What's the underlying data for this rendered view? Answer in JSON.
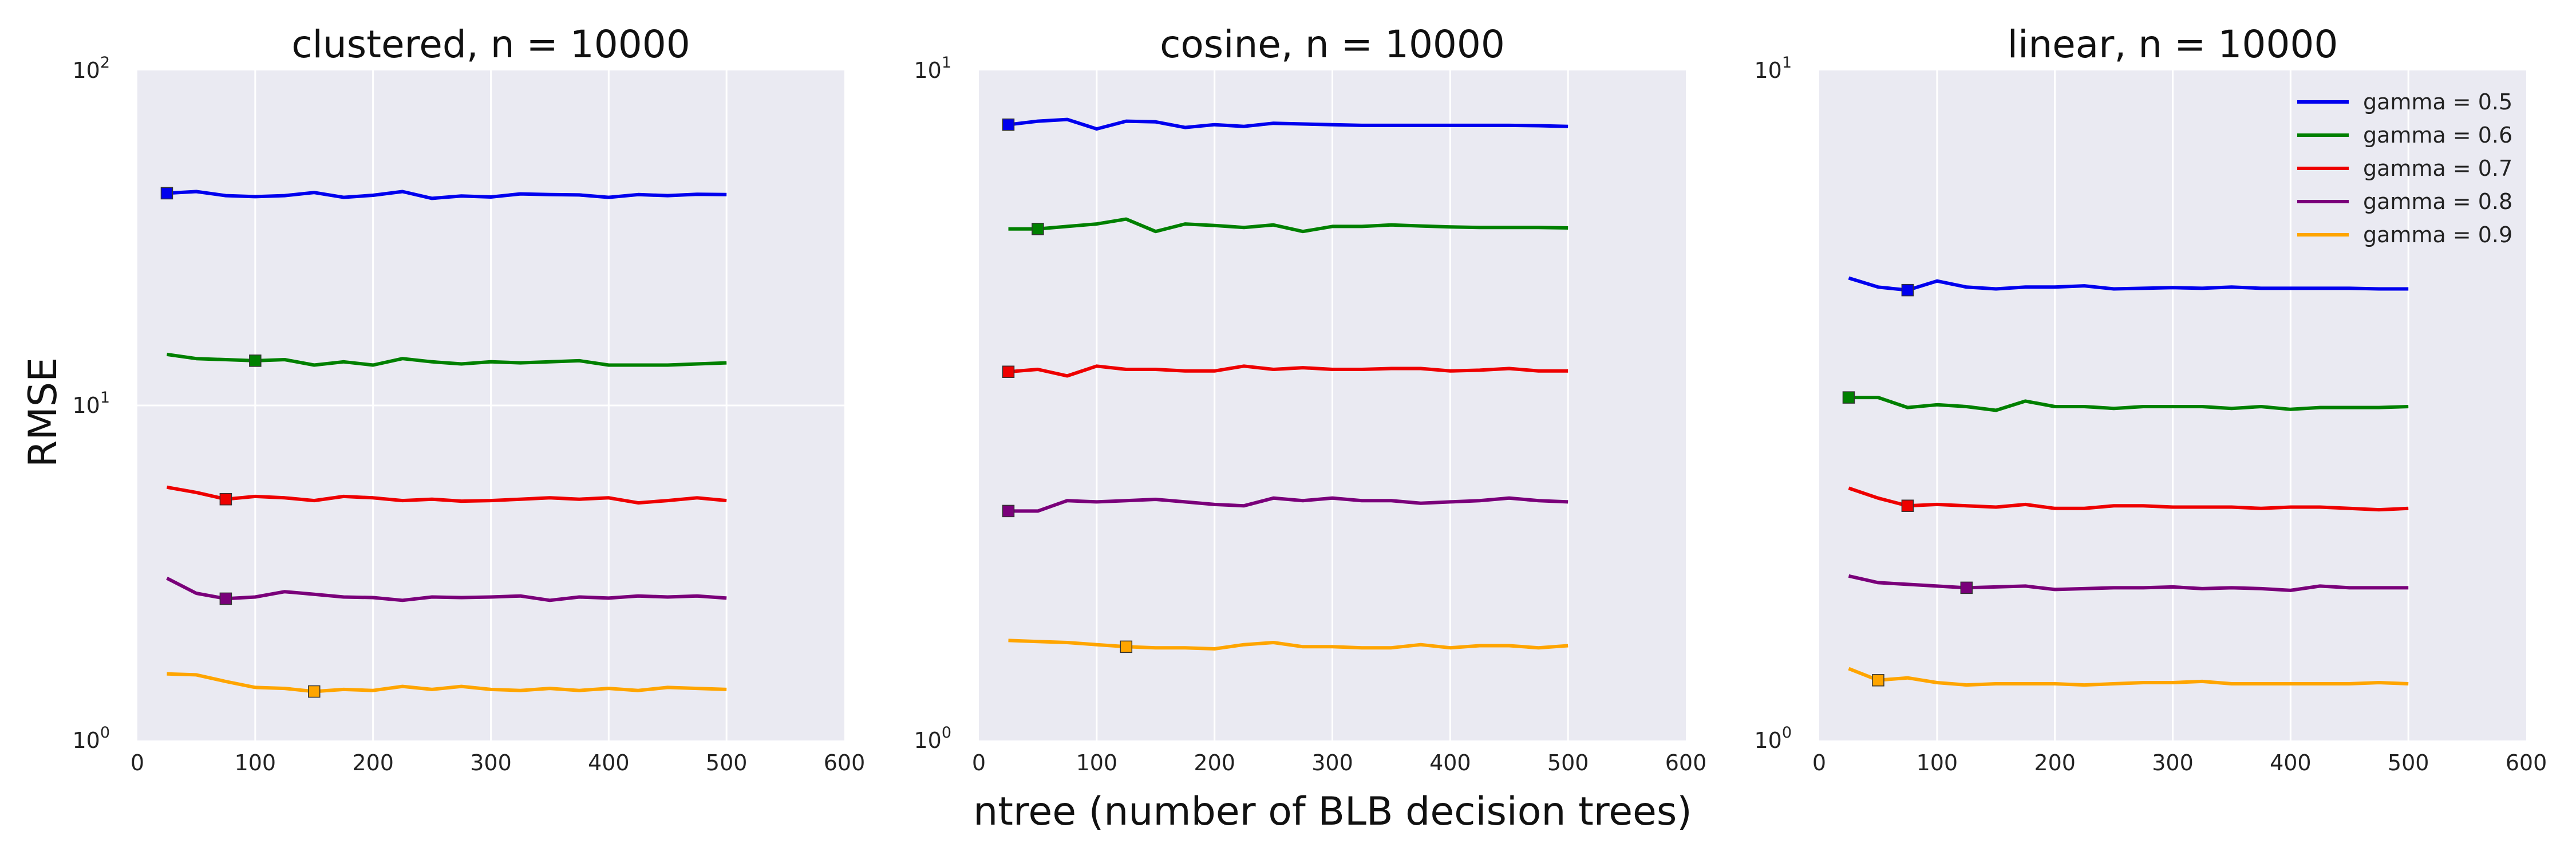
{
  "figure": {
    "ylabel": "RMSE",
    "xlabel": "ntree (number of BLB decision trees)"
  },
  "chart_data": [
    {
      "type": "line",
      "title": "clustered, n = 10000",
      "xlim": [
        0,
        600
      ],
      "ylim": [
        1,
        100
      ],
      "yscale": "log",
      "xticks": [
        "0",
        "100",
        "200",
        "300",
        "400",
        "500",
        "600"
      ],
      "yticks": [
        {
          "base": "10",
          "exp": "0"
        },
        {
          "base": "10",
          "exp": "1"
        },
        {
          "base": "10",
          "exp": "2"
        }
      ],
      "grid": true,
      "x": [
        25,
        50,
        75,
        100,
        125,
        150,
        175,
        200,
        225,
        250,
        275,
        300,
        325,
        350,
        375,
        400,
        425,
        450,
        475,
        500
      ],
      "series": [
        {
          "name": "gamma = 0.5",
          "color": "#0000ee",
          "marker_x": 25,
          "values": [
            43.0,
            43.5,
            42.3,
            42.0,
            42.3,
            43.2,
            41.8,
            42.4,
            43.5,
            41.5,
            42.2,
            41.9,
            42.8,
            42.6,
            42.5,
            41.8,
            42.6,
            42.3,
            42.7,
            42.6
          ]
        },
        {
          "name": "gamma = 0.6",
          "color": "#008000",
          "marker_x": 100,
          "values": [
            14.2,
            13.8,
            13.7,
            13.6,
            13.7,
            13.2,
            13.5,
            13.2,
            13.8,
            13.5,
            13.3,
            13.5,
            13.4,
            13.5,
            13.6,
            13.2,
            13.2,
            13.2,
            13.3,
            13.4
          ]
        },
        {
          "name": "gamma = 0.7",
          "color": "#ee0000",
          "marker_x": 75,
          "values": [
            5.7,
            5.5,
            5.25,
            5.35,
            5.3,
            5.2,
            5.35,
            5.3,
            5.2,
            5.25,
            5.18,
            5.2,
            5.25,
            5.3,
            5.25,
            5.3,
            5.12,
            5.2,
            5.3,
            5.2
          ]
        },
        {
          "name": "gamma = 0.8",
          "color": "#7a007a",
          "marker_x": 75,
          "values": [
            3.05,
            2.75,
            2.65,
            2.68,
            2.78,
            2.73,
            2.68,
            2.67,
            2.62,
            2.68,
            2.67,
            2.68,
            2.7,
            2.62,
            2.68,
            2.66,
            2.7,
            2.68,
            2.7,
            2.66
          ]
        },
        {
          "name": "gamma = 0.9",
          "color": "#ffa500",
          "marker_x": 150,
          "values": [
            1.58,
            1.57,
            1.5,
            1.44,
            1.43,
            1.4,
            1.42,
            1.41,
            1.45,
            1.42,
            1.45,
            1.42,
            1.41,
            1.43,
            1.41,
            1.43,
            1.41,
            1.44,
            1.43,
            1.42
          ]
        }
      ]
    },
    {
      "type": "line",
      "title": "cosine, n = 10000",
      "xlim": [
        0,
        600
      ],
      "ylim": [
        1,
        10
      ],
      "yscale": "log",
      "xticks": [
        "0",
        "100",
        "200",
        "300",
        "400",
        "500",
        "600"
      ],
      "yticks": [
        {
          "base": "10",
          "exp": "0"
        },
        {
          "base": "10",
          "exp": "1"
        }
      ],
      "grid": true,
      "x": [
        25,
        50,
        75,
        100,
        125,
        150,
        175,
        200,
        225,
        250,
        275,
        300,
        325,
        350,
        375,
        400,
        425,
        450,
        475,
        500
      ],
      "series": [
        {
          "name": "gamma = 0.5",
          "color": "#0000ee",
          "marker_x": 25,
          "values": [
            8.3,
            8.4,
            8.45,
            8.18,
            8.4,
            8.38,
            8.22,
            8.3,
            8.25,
            8.34,
            8.32,
            8.3,
            8.28,
            8.28,
            8.28,
            8.28,
            8.28,
            8.28,
            8.27,
            8.25
          ]
        },
        {
          "name": "gamma = 0.6",
          "color": "#008000",
          "marker_x": 50,
          "values": [
            5.8,
            5.8,
            5.85,
            5.9,
            6.0,
            5.75,
            5.9,
            5.87,
            5.83,
            5.88,
            5.75,
            5.85,
            5.85,
            5.88,
            5.86,
            5.84,
            5.83,
            5.83,
            5.83,
            5.82
          ]
        },
        {
          "name": "gamma = 0.7",
          "color": "#ee0000",
          "marker_x": 25,
          "values": [
            3.55,
            3.58,
            3.5,
            3.62,
            3.58,
            3.58,
            3.56,
            3.56,
            3.62,
            3.58,
            3.6,
            3.58,
            3.58,
            3.59,
            3.59,
            3.56,
            3.57,
            3.59,
            3.56,
            3.56
          ]
        },
        {
          "name": "gamma = 0.8",
          "color": "#7a007a",
          "marker_x": 25,
          "values": [
            2.2,
            2.2,
            2.28,
            2.27,
            2.28,
            2.29,
            2.27,
            2.25,
            2.24,
            2.3,
            2.28,
            2.3,
            2.28,
            2.28,
            2.26,
            2.27,
            2.28,
            2.3,
            2.28,
            2.27
          ]
        },
        {
          "name": "gamma = 0.9",
          "color": "#ffa500",
          "marker_x": 125,
          "values": [
            1.41,
            1.405,
            1.4,
            1.39,
            1.38,
            1.375,
            1.375,
            1.37,
            1.39,
            1.4,
            1.38,
            1.38,
            1.375,
            1.375,
            1.39,
            1.375,
            1.385,
            1.385,
            1.375,
            1.385
          ]
        }
      ]
    },
    {
      "type": "line",
      "title": "linear, n = 10000",
      "xlim": [
        0,
        600
      ],
      "ylim": [
        1,
        10
      ],
      "yscale": "log",
      "xticks": [
        "0",
        "100",
        "200",
        "300",
        "400",
        "500",
        "600"
      ],
      "yticks": [
        {
          "base": "10",
          "exp": "0"
        },
        {
          "base": "10",
          "exp": "1"
        }
      ],
      "grid": true,
      "legend": "top-right",
      "x": [
        25,
        50,
        75,
        100,
        125,
        150,
        175,
        200,
        225,
        250,
        275,
        300,
        325,
        350,
        375,
        400,
        425,
        450,
        475,
        500
      ],
      "series": [
        {
          "name": "gamma = 0.5",
          "color": "#0000ee",
          "marker_x": 75,
          "values": [
            4.9,
            4.75,
            4.7,
            4.85,
            4.75,
            4.72,
            4.75,
            4.75,
            4.77,
            4.72,
            4.73,
            4.74,
            4.73,
            4.75,
            4.73,
            4.73,
            4.73,
            4.73,
            4.72,
            4.72
          ]
        },
        {
          "name": "gamma = 0.6",
          "color": "#008000",
          "marker_x": 25,
          "values": [
            3.25,
            3.25,
            3.14,
            3.17,
            3.15,
            3.11,
            3.21,
            3.15,
            3.15,
            3.13,
            3.15,
            3.15,
            3.15,
            3.13,
            3.15,
            3.12,
            3.14,
            3.14,
            3.14,
            3.15
          ]
        },
        {
          "name": "gamma = 0.7",
          "color": "#ee0000",
          "marker_x": 75,
          "values": [
            2.38,
            2.3,
            2.24,
            2.25,
            2.24,
            2.23,
            2.25,
            2.22,
            2.22,
            2.24,
            2.24,
            2.23,
            2.23,
            2.23,
            2.22,
            2.23,
            2.23,
            2.22,
            2.21,
            2.22
          ]
        },
        {
          "name": "gamma = 0.8",
          "color": "#7a007a",
          "marker_x": 125,
          "values": [
            1.76,
            1.72,
            1.71,
            1.7,
            1.69,
            1.695,
            1.7,
            1.68,
            1.685,
            1.69,
            1.69,
            1.695,
            1.685,
            1.69,
            1.685,
            1.675,
            1.7,
            1.69,
            1.69,
            1.69
          ]
        },
        {
          "name": "gamma = 0.9",
          "color": "#ffa500",
          "marker_x": 50,
          "values": [
            1.28,
            1.23,
            1.24,
            1.22,
            1.21,
            1.215,
            1.215,
            1.215,
            1.21,
            1.215,
            1.22,
            1.22,
            1.225,
            1.215,
            1.215,
            1.215,
            1.215,
            1.215,
            1.22,
            1.215
          ]
        }
      ]
    }
  ]
}
